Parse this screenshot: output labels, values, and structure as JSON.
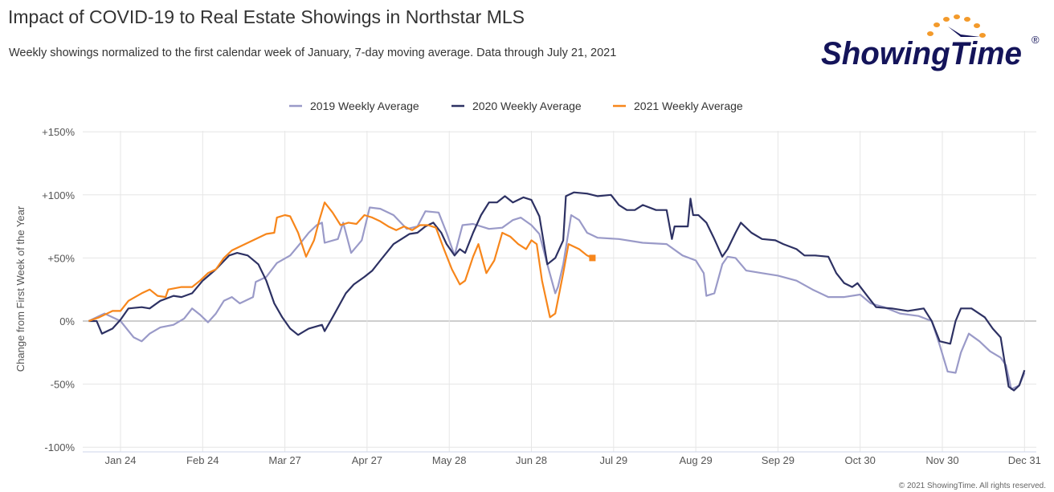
{
  "header": {
    "title": "Impact of COVID-19 to Real Estate Showings in Northstar MLS",
    "subtitle": "Weekly showings normalized to the first calendar week of January, 7-day moving average. Data through July 21, 2021",
    "logo_text": "ShowingTime",
    "logo_registered": "®"
  },
  "footer": {
    "copyright": "© 2021 ShowingTime. All rights reserved."
  },
  "colors": {
    "series_2019": "#9a9ac8",
    "series_2020": "#2d3163",
    "series_2021": "#f7861b",
    "logo_navy": "#14145a",
    "logo_orange": "#f39a2b"
  },
  "chart_data": {
    "type": "line",
    "title": "Impact of COVID-19 to Real Estate Showings in Northstar MLS",
    "xlabel": "",
    "ylabel": "Change from First Week of the Year",
    "xlim": [
      "01-01",
      "12-31"
    ],
    "ylim": [
      -100,
      150
    ],
    "x_ticks": [
      {
        "date": "01-24",
        "label": "Jan 24"
      },
      {
        "date": "02-24",
        "label": "Feb 24"
      },
      {
        "date": "03-27",
        "label": "Mar 27"
      },
      {
        "date": "04-27",
        "label": "Apr 27"
      },
      {
        "date": "05-28",
        "label": "May 28"
      },
      {
        "date": "06-28",
        "label": "Jun 28"
      },
      {
        "date": "07-29",
        "label": "Jul 29"
      },
      {
        "date": "08-29",
        "label": "Aug 29"
      },
      {
        "date": "09-29",
        "label": "Sep 29"
      },
      {
        "date": "10-30",
        "label": "Oct 30"
      },
      {
        "date": "11-30",
        "label": "Nov 30"
      },
      {
        "date": "12-31",
        "label": "Dec 31"
      }
    ],
    "y_ticks": [
      {
        "value": 150,
        "label": "+150%"
      },
      {
        "value": 100,
        "label": "+100%"
      },
      {
        "value": 50,
        "label": "+50%"
      },
      {
        "value": 0,
        "label": "0%"
      },
      {
        "value": -50,
        "label": "-50%"
      },
      {
        "value": -100,
        "label": "-100%"
      }
    ],
    "grid": true,
    "legend_position": "top-center",
    "series": [
      {
        "name": "2019 Weekly Average",
        "color": "#9a9ac8",
        "points": [
          [
            "01-12",
            0
          ],
          [
            "01-18",
            6
          ],
          [
            "01-24",
            0
          ],
          [
            "01-29",
            -13
          ],
          [
            "02-01",
            -16
          ],
          [
            "02-04",
            -10
          ],
          [
            "02-08",
            -5
          ],
          [
            "02-13",
            -3
          ],
          [
            "02-17",
            2
          ],
          [
            "02-20",
            10
          ],
          [
            "02-23",
            5
          ],
          [
            "02-26",
            -1
          ],
          [
            "03-01",
            6
          ],
          [
            "03-04",
            16
          ],
          [
            "03-07",
            19
          ],
          [
            "03-10",
            14
          ],
          [
            "03-15",
            19
          ],
          [
            "03-16",
            31
          ],
          [
            "03-20",
            35
          ],
          [
            "03-24",
            46
          ],
          [
            "03-29",
            52
          ],
          [
            "04-02",
            62
          ],
          [
            "04-05",
            70
          ],
          [
            "04-08",
            76
          ],
          [
            "04-10",
            78
          ],
          [
            "04-11",
            62
          ],
          [
            "04-16",
            65
          ],
          [
            "04-18",
            78
          ],
          [
            "04-21",
            54
          ],
          [
            "04-25",
            64
          ],
          [
            "04-28",
            90
          ],
          [
            "05-02",
            89
          ],
          [
            "05-07",
            84
          ],
          [
            "05-12",
            73
          ],
          [
            "05-16",
            75
          ],
          [
            "05-19",
            87
          ],
          [
            "05-24",
            86
          ],
          [
            "05-27",
            70
          ],
          [
            "05-30",
            52
          ],
          [
            "06-02",
            76
          ],
          [
            "06-06",
            77
          ],
          [
            "06-12",
            73
          ],
          [
            "06-17",
            74
          ],
          [
            "06-21",
            80
          ],
          [
            "06-24",
            82
          ],
          [
            "06-28",
            76
          ],
          [
            "07-01",
            69
          ],
          [
            "07-04",
            45
          ],
          [
            "07-07",
            22
          ],
          [
            "07-08",
            27
          ],
          [
            "07-10",
            45
          ],
          [
            "07-13",
            84
          ],
          [
            "07-16",
            80
          ],
          [
            "07-19",
            70
          ],
          [
            "07-23",
            66
          ],
          [
            "07-31",
            65
          ],
          [
            "08-09",
            62
          ],
          [
            "08-18",
            61
          ],
          [
            "08-24",
            52
          ],
          [
            "08-29",
            48
          ],
          [
            "09-01",
            38
          ],
          [
            "09-02",
            20
          ],
          [
            "09-05",
            22
          ],
          [
            "09-08",
            45
          ],
          [
            "09-10",
            51
          ],
          [
            "09-13",
            50
          ],
          [
            "09-17",
            40
          ],
          [
            "09-23",
            38
          ],
          [
            "09-29",
            36
          ],
          [
            "10-06",
            32
          ],
          [
            "10-12",
            25
          ],
          [
            "10-18",
            19
          ],
          [
            "10-24",
            19
          ],
          [
            "10-30",
            21
          ],
          [
            "11-03",
            14
          ],
          [
            "11-08",
            11
          ],
          [
            "11-14",
            6
          ],
          [
            "11-21",
            4
          ],
          [
            "11-26",
            0
          ],
          [
            "11-29",
            -19
          ],
          [
            "12-02",
            -40
          ],
          [
            "12-05",
            -41
          ],
          [
            "12-07",
            -25
          ],
          [
            "12-10",
            -10
          ],
          [
            "12-14",
            -16
          ],
          [
            "12-18",
            -24
          ],
          [
            "12-22",
            -29
          ],
          [
            "12-24",
            -35
          ],
          [
            "12-26",
            -54
          ],
          [
            "12-29",
            -51
          ],
          [
            "12-31",
            -41
          ]
        ]
      },
      {
        "name": "2020 Weekly Average",
        "color": "#2d3163",
        "points": [
          [
            "01-12",
            0
          ],
          [
            "01-15",
            0
          ],
          [
            "01-17",
            -10
          ],
          [
            "01-21",
            -6
          ],
          [
            "01-24",
            1
          ],
          [
            "01-27",
            10
          ],
          [
            "02-01",
            11
          ],
          [
            "02-04",
            10
          ],
          [
            "02-08",
            16
          ],
          [
            "02-13",
            20
          ],
          [
            "02-16",
            19
          ],
          [
            "02-20",
            22
          ],
          [
            "02-24",
            32
          ],
          [
            "03-01",
            41
          ],
          [
            "03-06",
            52
          ],
          [
            "03-09",
            54
          ],
          [
            "03-13",
            52
          ],
          [
            "03-17",
            45
          ],
          [
            "03-20",
            32
          ],
          [
            "03-23",
            14
          ],
          [
            "03-26",
            3
          ],
          [
            "03-29",
            -6
          ],
          [
            "04-01",
            -11
          ],
          [
            "04-05",
            -6
          ],
          [
            "04-10",
            -3
          ],
          [
            "04-11",
            -8
          ],
          [
            "04-14",
            3
          ],
          [
            "04-19",
            22
          ],
          [
            "04-22",
            29
          ],
          [
            "04-26",
            35
          ],
          [
            "04-29",
            40
          ],
          [
            "05-02",
            48
          ],
          [
            "05-07",
            61
          ],
          [
            "05-10",
            65
          ],
          [
            "05-13",
            69
          ],
          [
            "05-16",
            70
          ],
          [
            "05-19",
            75
          ],
          [
            "05-22",
            78
          ],
          [
            "05-25",
            70
          ],
          [
            "05-27",
            61
          ],
          [
            "05-30",
            52
          ],
          [
            "06-01",
            57
          ],
          [
            "06-03",
            54
          ],
          [
            "06-06",
            70
          ],
          [
            "06-09",
            84
          ],
          [
            "06-12",
            94
          ],
          [
            "06-15",
            94
          ],
          [
            "06-18",
            99
          ],
          [
            "06-21",
            94
          ],
          [
            "06-25",
            98
          ],
          [
            "06-28",
            96
          ],
          [
            "07-01",
            83
          ],
          [
            "07-04",
            45
          ],
          [
            "07-07",
            50
          ],
          [
            "07-10",
            64
          ],
          [
            "07-11",
            99
          ],
          [
            "07-14",
            102
          ],
          [
            "07-19",
            101
          ],
          [
            "07-23",
            99
          ],
          [
            "07-28",
            100
          ],
          [
            "07-31",
            92
          ],
          [
            "08-03",
            88
          ],
          [
            "08-06",
            88
          ],
          [
            "08-09",
            92
          ],
          [
            "08-14",
            88
          ],
          [
            "08-18",
            88
          ],
          [
            "08-20",
            65
          ],
          [
            "08-21",
            75
          ],
          [
            "08-26",
            75
          ],
          [
            "08-27",
            97
          ],
          [
            "08-28",
            84
          ],
          [
            "08-30",
            84
          ],
          [
            "09-02",
            78
          ],
          [
            "09-05",
            65
          ],
          [
            "09-08",
            51
          ],
          [
            "09-10",
            57
          ],
          [
            "09-13",
            70
          ],
          [
            "09-15",
            78
          ],
          [
            "09-19",
            70
          ],
          [
            "09-23",
            65
          ],
          [
            "09-28",
            64
          ],
          [
            "10-01",
            61
          ],
          [
            "10-06",
            57
          ],
          [
            "10-09",
            52
          ],
          [
            "10-13",
            52
          ],
          [
            "10-18",
            51
          ],
          [
            "10-21",
            38
          ],
          [
            "10-24",
            30
          ],
          [
            "10-27",
            27
          ],
          [
            "10-29",
            30
          ],
          [
            "11-02",
            19
          ],
          [
            "11-05",
            11
          ],
          [
            "11-11",
            10
          ],
          [
            "11-17",
            8
          ],
          [
            "11-23",
            10
          ],
          [
            "11-26",
            0
          ],
          [
            "11-29",
            -16
          ],
          [
            "12-03",
            -18
          ],
          [
            "12-05",
            0
          ],
          [
            "12-07",
            10
          ],
          [
            "12-11",
            10
          ],
          [
            "12-16",
            3
          ],
          [
            "12-19",
            -6
          ],
          [
            "12-22",
            -13
          ],
          [
            "12-25",
            -52
          ],
          [
            "12-27",
            -55
          ],
          [
            "12-29",
            -51
          ],
          [
            "12-31",
            -39
          ]
        ]
      },
      {
        "name": "2021 Weekly Average",
        "color": "#f7861b",
        "end_marker": "square",
        "points": [
          [
            "01-12",
            0
          ],
          [
            "01-16",
            3
          ],
          [
            "01-21",
            8
          ],
          [
            "01-24",
            8
          ],
          [
            "01-27",
            16
          ],
          [
            "02-01",
            22
          ],
          [
            "02-04",
            25
          ],
          [
            "02-07",
            20
          ],
          [
            "02-10",
            19
          ],
          [
            "02-11",
            25
          ],
          [
            "02-16",
            27
          ],
          [
            "02-20",
            27
          ],
          [
            "02-23",
            32
          ],
          [
            "02-26",
            38
          ],
          [
            "03-01",
            41
          ],
          [
            "03-04",
            50
          ],
          [
            "03-07",
            56
          ],
          [
            "03-10",
            59
          ],
          [
            "03-15",
            64
          ],
          [
            "03-20",
            69
          ],
          [
            "03-23",
            70
          ],
          [
            "03-24",
            82
          ],
          [
            "03-27",
            84
          ],
          [
            "03-29",
            83
          ],
          [
            "04-01",
            70
          ],
          [
            "04-04",
            51
          ],
          [
            "04-07",
            64
          ],
          [
            "04-09",
            80
          ],
          [
            "04-11",
            94
          ],
          [
            "04-14",
            86
          ],
          [
            "04-17",
            76
          ],
          [
            "04-20",
            78
          ],
          [
            "04-23",
            77
          ],
          [
            "04-26",
            84
          ],
          [
            "04-29",
            82
          ],
          [
            "05-02",
            79
          ],
          [
            "05-05",
            75
          ],
          [
            "05-08",
            72
          ],
          [
            "05-11",
            75
          ],
          [
            "05-14",
            72
          ],
          [
            "05-17",
            76
          ],
          [
            "05-20",
            76
          ],
          [
            "05-23",
            74
          ],
          [
            "05-26",
            57
          ],
          [
            "05-29",
            41
          ],
          [
            "06-01",
            29
          ],
          [
            "06-03",
            32
          ],
          [
            "06-06",
            51
          ],
          [
            "06-08",
            61
          ],
          [
            "06-11",
            38
          ],
          [
            "06-14",
            48
          ],
          [
            "06-17",
            70
          ],
          [
            "06-20",
            67
          ],
          [
            "06-23",
            61
          ],
          [
            "06-26",
            57
          ],
          [
            "06-28",
            64
          ],
          [
            "06-30",
            61
          ],
          [
            "07-02",
            32
          ],
          [
            "07-05",
            3
          ],
          [
            "07-07",
            6
          ],
          [
            "07-10",
            38
          ],
          [
            "07-12",
            61
          ],
          [
            "07-16",
            57
          ],
          [
            "07-19",
            52
          ],
          [
            "07-21",
            50
          ]
        ]
      }
    ]
  }
}
